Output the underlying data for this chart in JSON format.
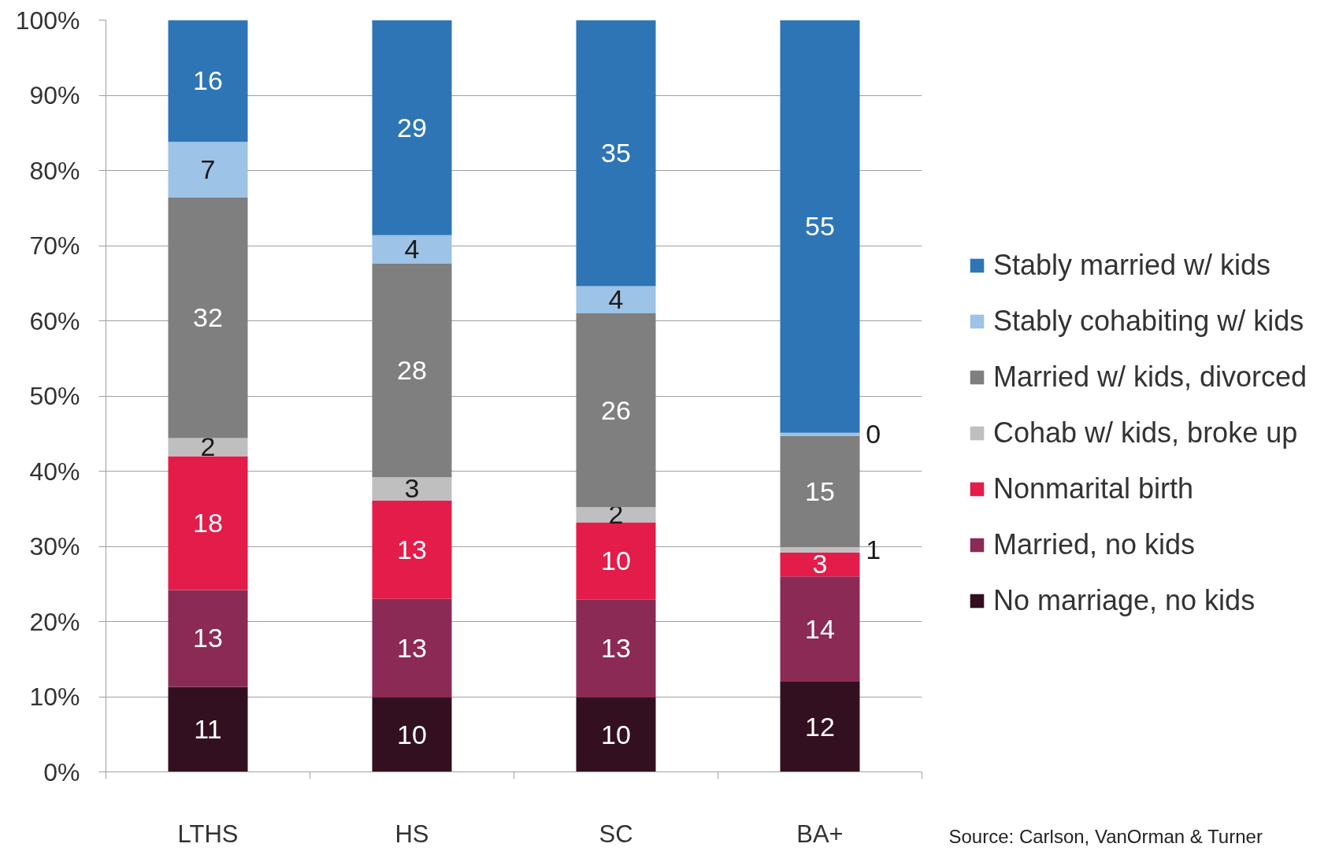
{
  "chart_data": {
    "type": "bar",
    "stacked": true,
    "categories": [
      "LTHS",
      "HS",
      "SC",
      "BA+"
    ],
    "series": [
      {
        "name": "No marriage, no kids",
        "color": "#33101f",
        "values": [
          11.3,
          9.9,
          9.9,
          12.0
        ],
        "value_labels": [
          "11",
          "10",
          "10",
          "12"
        ]
      },
      {
        "name": "Married, no kids",
        "color": "#8b2a55",
        "values": [
          12.9,
          13.1,
          13.0,
          14.0
        ],
        "value_labels": [
          "13",
          "13",
          "13",
          "14"
        ]
      },
      {
        "name": "Nonmarital birth",
        "color": "#e31c4a",
        "values": [
          17.8,
          13.1,
          10.3,
          3.2
        ],
        "value_labels": [
          "18",
          "13",
          "10",
          "3"
        ]
      },
      {
        "name": "Cohab w/ kids, broke up",
        "color": "#bfbfbf",
        "values": [
          2.4,
          3.1,
          2.0,
          0.7
        ],
        "value_labels": [
          "2",
          "3",
          "2",
          "1"
        ]
      },
      {
        "name": "Married w/ kids, divorced",
        "color": "#7f7f7f",
        "values": [
          32.0,
          28.4,
          25.8,
          14.8
        ],
        "value_labels": [
          "32",
          "28",
          "26",
          "15"
        ]
      },
      {
        "name": "Stably cohabiting w/ kids",
        "color": "#9dc3e6",
        "values": [
          7.4,
          3.8,
          3.6,
          0.4
        ],
        "value_labels": [
          "7",
          "4",
          "4",
          "0"
        ]
      },
      {
        "name": "Stably married w/ kids",
        "color": "#2e75b6",
        "values": [
          16.2,
          28.6,
          35.4,
          54.9
        ],
        "value_labels": [
          "16",
          "29",
          "35",
          "55"
        ]
      }
    ],
    "ylim": [
      0,
      100
    ],
    "yticks": [
      {
        "value": 0,
        "label": "0%"
      },
      {
        "value": 10,
        "label": "10%"
      },
      {
        "value": 20,
        "label": "20%"
      },
      {
        "value": 30,
        "label": "30%"
      },
      {
        "value": 40,
        "label": "40%"
      },
      {
        "value": 50,
        "label": "50%"
      },
      {
        "value": 60,
        "label": "60%"
      },
      {
        "value": 70,
        "label": "70%"
      },
      {
        "value": 80,
        "label": "80%"
      },
      {
        "value": 90,
        "label": "90%"
      },
      {
        "value": 100,
        "label": "100%"
      }
    ],
    "grid": "y",
    "legend": "right",
    "annotations": [
      "Source: Carlson, VanOrman & Turner"
    ]
  }
}
